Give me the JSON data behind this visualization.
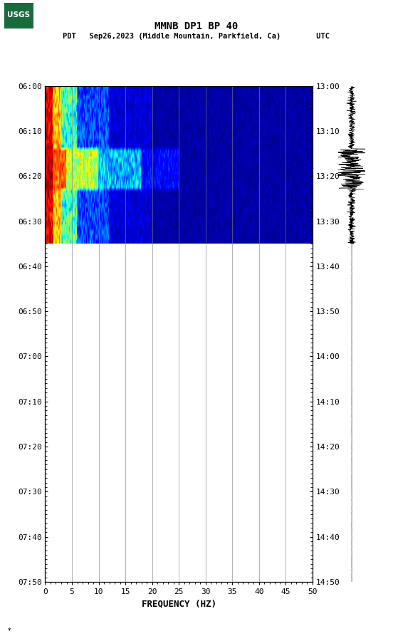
{
  "title_line1": "MMNB DP1 BP 40",
  "title_line2": "PDT   Sep26,2023 (Middle Mountain, Parkfield, Ca)        UTC",
  "xlabel": "FREQUENCY (HZ)",
  "freq_min": 0,
  "freq_max": 50,
  "freq_ticks": [
    0,
    5,
    10,
    15,
    20,
    25,
    30,
    35,
    40,
    45,
    50
  ],
  "time_left_labels": [
    "06:00",
    "06:10",
    "06:20",
    "06:30",
    "06:40",
    "06:50",
    "07:00",
    "07:10",
    "07:20",
    "07:30",
    "07:40",
    "07:50"
  ],
  "time_right_labels": [
    "13:00",
    "13:10",
    "13:20",
    "13:30",
    "13:40",
    "13:50",
    "14:00",
    "14:10",
    "14:20",
    "14:30",
    "14:40",
    "14:50"
  ],
  "total_minutes": 110,
  "spectrogram_minutes": 35,
  "background_color": "#ffffff",
  "grid_color": "#808080",
  "tick_fontsize": 8,
  "title_fontsize": 10,
  "logo_color": "#1a6b3c"
}
